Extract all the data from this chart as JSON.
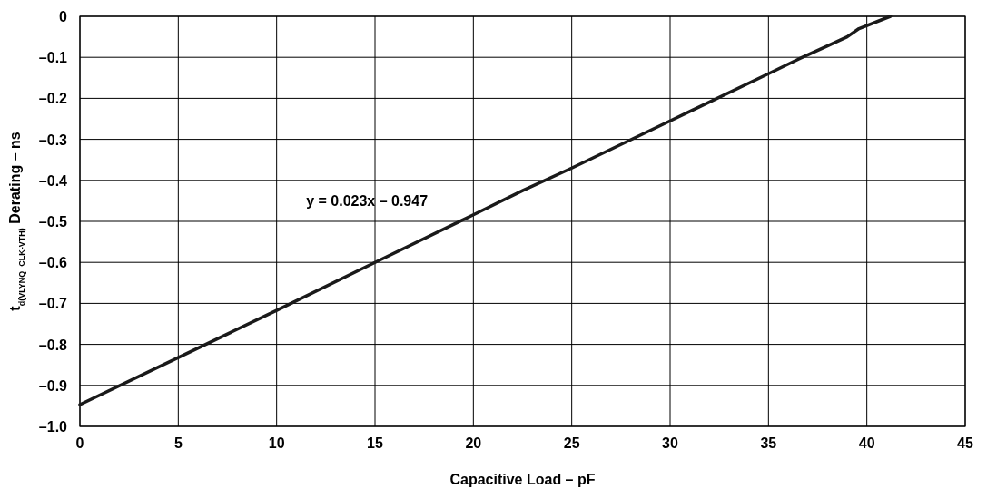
{
  "chart_data": {
    "type": "line",
    "xlabel": "Capacitive Load – pF",
    "ylabel": "t$_{d(VLYNQ_CLK-VTH)}$ Derating – ns",
    "annotations": [
      "y = 0.023x – 0.947"
    ],
    "series": [
      {
        "color": "#1a1a1a",
        "x": [
          0,
          5,
          10,
          15,
          20,
          22.5,
          25,
          30,
          35,
          36.5,
          38,
          39,
          39.6,
          41.2
        ],
        "values": [
          -0.947,
          -0.832,
          -0.717,
          -0.6,
          -0.484,
          -0.425,
          -0.37,
          -0.255,
          -0.14,
          -0.105,
          -0.072,
          -0.05,
          -0.03,
          0
        ]
      }
    ],
    "xlim": [
      0,
      45
    ],
    "xticks": [
      0,
      5,
      10,
      15,
      20,
      25,
      30,
      35,
      40,
      45
    ],
    "ylim": [
      -1.0,
      0
    ],
    "yticks": [
      0,
      {
        "value": -0.1,
        "label": "–0.1"
      },
      {
        "value": -0.2,
        "label": "–0.2"
      },
      {
        "value": -0.3,
        "label": "–0.3"
      },
      {
        "value": -0.4,
        "label": "–0.4"
      },
      {
        "value": -0.5,
        "label": "–0.5"
      },
      {
        "value": -0.6,
        "label": "–0.6"
      },
      {
        "value": -0.7,
        "label": "–0.7"
      },
      {
        "value": -0.8,
        "label": "–0.8"
      },
      {
        "value": -0.9,
        "label": "–0.9"
      },
      {
        "value": -1.0,
        "label": "–1.0"
      }
    ],
    "grid": true,
    "line_style": "solid",
    "marker": "none"
  }
}
